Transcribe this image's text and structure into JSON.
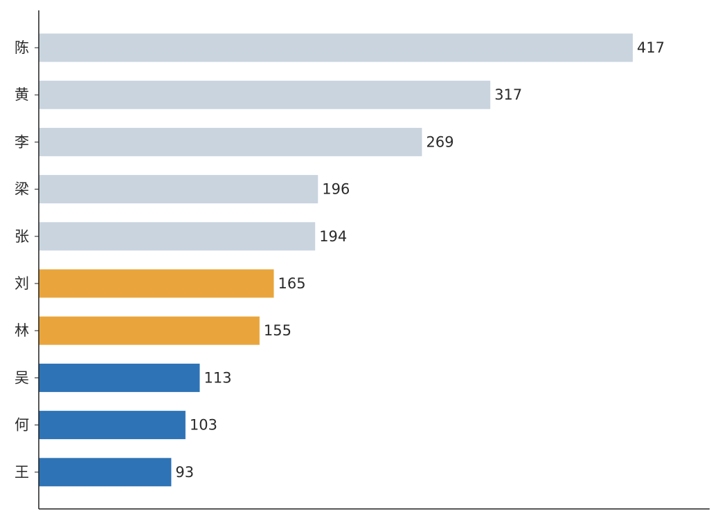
{
  "chart_data": {
    "type": "bar",
    "orientation": "horizontal",
    "categories": [
      "陈",
      "黄",
      "李",
      "梁",
      "张",
      "刘",
      "林",
      "吴",
      "何",
      "王"
    ],
    "values": [
      417,
      317,
      269,
      196,
      194,
      165,
      155,
      113,
      103,
      93
    ],
    "bar_colors": [
      "#c9d4df",
      "#c9d4df",
      "#c9d4df",
      "#c9d4df",
      "#c9d4df",
      "#e9a53c",
      "#e9a53c",
      "#2e73b5",
      "#2e73b5",
      "#2e73b5"
    ],
    "xlim": [
      0,
      470
    ],
    "grid": false,
    "data_labels": true
  }
}
